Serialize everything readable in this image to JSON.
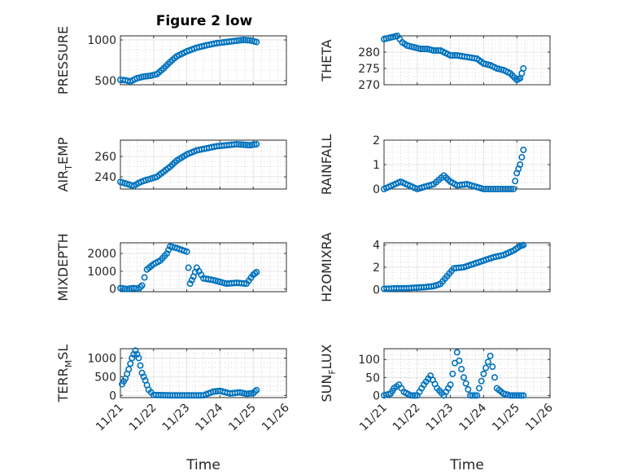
{
  "figure_title": "Figure 2 low",
  "chart_data": [
    {
      "type": "scatter",
      "ylabel": [
        "PRESSURE"
      ],
      "xlabel": "",
      "xlim": [
        0,
        5
      ],
      "ylim": [
        450,
        1050
      ],
      "yticks": [
        500,
        1000
      ],
      "x": [
        0,
        0.15,
        0.3,
        0.5,
        0.7,
        0.9,
        1.1,
        1.3,
        1.5,
        1.7,
        2.0,
        2.3,
        2.6,
        2.9,
        3.2,
        3.5,
        3.7,
        3.9,
        4.1
      ],
      "y": [
        510,
        505,
        490,
        530,
        550,
        560,
        580,
        650,
        730,
        800,
        860,
        905,
        935,
        960,
        975,
        990,
        1000,
        995,
        975
      ]
    },
    {
      "type": "scatter",
      "ylabel": [
        "THETA"
      ],
      "xlabel": "",
      "xlim": [
        0,
        5
      ],
      "ylim": [
        270,
        285
      ],
      "yticks": [
        270,
        275,
        280
      ],
      "x": [
        0,
        0.2,
        0.4,
        0.55,
        0.7,
        0.9,
        1.1,
        1.3,
        1.5,
        1.7,
        2.0,
        2.2,
        2.5,
        2.8,
        3.0,
        3.2,
        3.4,
        3.6,
        3.8,
        4.0,
        4.1,
        4.2
      ],
      "y": [
        284,
        284.5,
        285,
        283,
        282,
        281.5,
        281,
        281,
        280.5,
        280.5,
        279,
        279,
        278.5,
        278,
        276.5,
        276,
        275,
        274.5,
        273.5,
        271.5,
        272,
        275
      ]
    },
    {
      "type": "scatter",
      "ylabel": [
        "AIR",
        "T",
        "EMP"
      ],
      "xlabel": "",
      "xlim": [
        0,
        5
      ],
      "ylim": [
        228,
        276
      ],
      "yticks": [
        240,
        260
      ],
      "x": [
        0,
        0.2,
        0.4,
        0.55,
        0.7,
        0.9,
        1.1,
        1.3,
        1.5,
        1.7,
        2.0,
        2.3,
        2.6,
        2.9,
        3.2,
        3.5,
        3.7,
        3.9,
        4.1
      ],
      "y": [
        235,
        233,
        231,
        234,
        236,
        238,
        240,
        245,
        250,
        256,
        262,
        266,
        268,
        270,
        271,
        272,
        271.5,
        271,
        272
      ]
    },
    {
      "type": "scatter",
      "ylabel": [
        "RAINFALL"
      ],
      "xlabel": "",
      "xlim": [
        0,
        5
      ],
      "ylim": [
        0,
        2
      ],
      "yticks": [
        0,
        1,
        2
      ],
      "x": [
        0,
        0.5,
        1.0,
        1.5,
        1.8,
        2.0,
        2.2,
        2.5,
        3.0,
        3.5,
        3.9,
        4.0,
        4.1,
        4.2
      ],
      "y": [
        0,
        0.3,
        0,
        0.2,
        0.55,
        0.3,
        0.15,
        0.2,
        0,
        0,
        0,
        0.65,
        1.0,
        1.6
      ]
    },
    {
      "type": "scatter",
      "ylabel": [
        "MIXDEPTH"
      ],
      "xlabel": "",
      "xlim": [
        0,
        5
      ],
      "ylim": [
        -150,
        2600
      ],
      "yticks": [
        0,
        1000,
        2000
      ],
      "x": [
        0,
        0.2,
        0.4,
        0.55,
        0.65,
        0.8,
        1.0,
        1.2,
        1.4,
        1.5,
        1.7,
        2.0,
        2.1,
        2.2,
        2.3,
        2.5,
        2.8,
        3.0,
        3.2,
        3.5,
        3.8,
        4.0,
        4.1
      ],
      "y": [
        50,
        0,
        50,
        20,
        200,
        1100,
        1400,
        1600,
        2000,
        2400,
        2300,
        2100,
        300,
        700,
        1200,
        600,
        500,
        400,
        300,
        350,
        300,
        800,
        950
      ]
    },
    {
      "type": "scatter",
      "ylabel": [
        "H2OMIXRA"
      ],
      "xlabel": "",
      "xlim": [
        0,
        5
      ],
      "ylim": [
        -0.2,
        4.2
      ],
      "yticks": [
        0,
        2,
        4
      ],
      "x": [
        0,
        0.3,
        0.6,
        0.9,
        1.2,
        1.5,
        1.7,
        1.9,
        2.1,
        2.4,
        2.7,
        3.0,
        3.3,
        3.6,
        3.9,
        4.1,
        4.2
      ],
      "y": [
        0.05,
        0.1,
        0.1,
        0.15,
        0.2,
        0.3,
        0.5,
        1.2,
        1.9,
        2.0,
        2.3,
        2.6,
        2.9,
        3.1,
        3.5,
        3.9,
        4.0
      ]
    },
    {
      "type": "scatter",
      "ylabel": [
        "TERR",
        "M",
        "SL"
      ],
      "xlabel": "Time",
      "xlim": [
        0,
        5
      ],
      "ylim": [
        -60,
        1250
      ],
      "yticks": [
        0,
        500,
        1000
      ],
      "xticks": [
        "11/21",
        "11/22",
        "11/23",
        "11/24",
        "11/25",
        "11/26"
      ],
      "x": [
        0.05,
        0.15,
        0.25,
        0.35,
        0.45,
        0.55,
        0.65,
        0.75,
        0.85,
        1.0,
        1.5,
        2.0,
        2.5,
        2.8,
        3.0,
        3.3,
        3.6,
        3.8,
        4.0,
        4.1
      ],
      "y": [
        300,
        450,
        700,
        1000,
        1200,
        1000,
        600,
        400,
        150,
        10,
        0,
        0,
        0,
        100,
        120,
        50,
        80,
        40,
        60,
        140
      ]
    },
    {
      "type": "scatter",
      "ylabel": [
        "SUN",
        "F",
        "LUX"
      ],
      "xlabel": "Time",
      "xlim": [
        0,
        5
      ],
      "ylim": [
        -6,
        130
      ],
      "yticks": [
        0,
        50,
        100
      ],
      "xticks": [
        "11/21",
        "11/22",
        "11/23",
        "11/24",
        "11/25",
        "11/26"
      ],
      "x": [
        0,
        0.2,
        0.3,
        0.45,
        0.6,
        0.8,
        1.0,
        1.2,
        1.4,
        1.6,
        1.8,
        2.0,
        2.2,
        2.4,
        2.6,
        2.8,
        3.0,
        3.2,
        3.4,
        3.6,
        3.8,
        4.0,
        4.2
      ],
      "y": [
        0,
        5,
        20,
        30,
        10,
        0,
        0,
        30,
        55,
        20,
        0,
        30,
        120,
        50,
        0,
        0,
        60,
        110,
        20,
        5,
        0,
        0,
        0
      ]
    }
  ]
}
